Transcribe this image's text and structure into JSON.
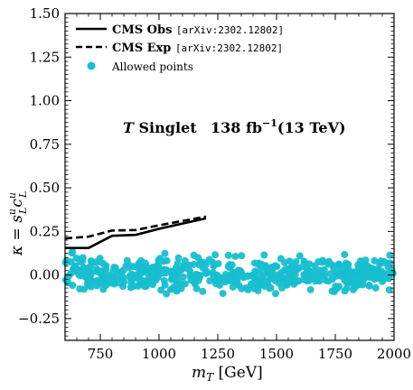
{
  "chart_data": {
    "type": "line",
    "title": "",
    "annotation": {
      "model": "T",
      "model_suffix": "Singlet",
      "lumi_value": "138 fb",
      "lumi_exp": "−1",
      "energy": "(13 TeV)"
    },
    "xlabel": "m_T [GeV]",
    "xlabel_var": "m",
    "xlabel_sub": "T",
    "xlabel_unit": "[GeV]",
    "ylabel": "κ = s_L^u c_L^u",
    "ylabel_var": "κ = s",
    "ylabel_sub1": "L",
    "ylabel_sup1": "u",
    "ylabel_c": "c",
    "ylabel_sub2": "L",
    "ylabel_sup2": "u",
    "xlim": [
      600,
      2000
    ],
    "ylim": [
      -0.375,
      1.5
    ],
    "x_ticks": [
      750,
      1000,
      1250,
      1500,
      1750,
      2000
    ],
    "x_tick_labels": [
      "750",
      "1000",
      "1250",
      "1500",
      "1750",
      "2000"
    ],
    "y_ticks": [
      -0.25,
      0.0,
      0.25,
      0.5,
      0.75,
      1.0,
      1.25,
      1.5
    ],
    "y_tick_labels": [
      "−0.25",
      "0.00",
      "0.25",
      "0.50",
      "0.75",
      "1.00",
      "1.25",
      "1.50"
    ],
    "grid": false,
    "legend_position": "top-left",
    "series": [
      {
        "name": "CMS Obs",
        "ref": "[arXiv:2302.12802]",
        "style": "solid",
        "color": "#000000",
        "x": [
          600,
          700,
          800,
          900,
          1000,
          1100,
          1200
        ],
        "y": [
          0.155,
          0.155,
          0.225,
          0.23,
          0.265,
          0.295,
          0.325
        ]
      },
      {
        "name": "CMS Exp",
        "ref": "[arXiv:2302.12802]",
        "style": "dashed",
        "color": "#000000",
        "x": [
          600,
          700,
          800,
          900,
          1000,
          1100,
          1200
        ],
        "y": [
          0.21,
          0.22,
          0.255,
          0.258,
          0.285,
          0.31,
          0.335
        ]
      },
      {
        "name": "Allowed points",
        "style": "scatter",
        "color": "#17becf",
        "x_range": [
          600,
          2000
        ],
        "y_range": [
          -0.17,
          0.18
        ],
        "count": 520
      }
    ]
  }
}
